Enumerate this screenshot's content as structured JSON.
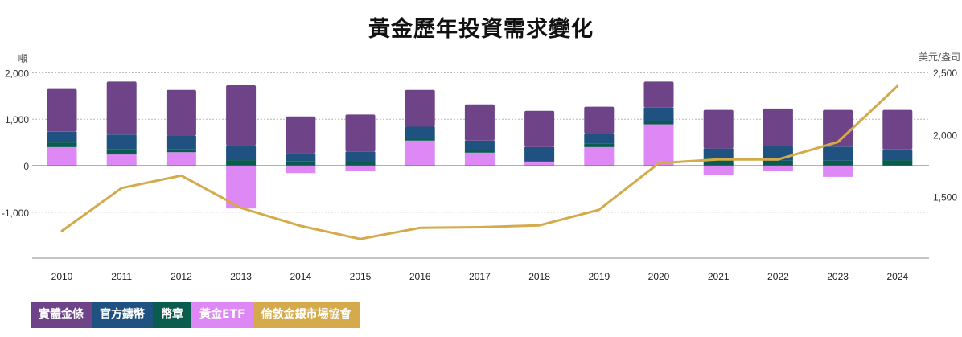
{
  "chart_data": {
    "type": "bar",
    "title": "黃金歷年投資需求變化",
    "left_axis_unit": "噸",
    "right_axis_unit": "美元/盎司",
    "categories": [
      "2010",
      "2011",
      "2012",
      "2013",
      "2014",
      "2015",
      "2016",
      "2017",
      "2018",
      "2019",
      "2020",
      "2021",
      "2022",
      "2023",
      "2024"
    ],
    "ylim_left": [
      -2000,
      2000
    ],
    "ylim_right": [
      1000,
      2500
    ],
    "left_ticks": [
      {
        "value": 2000,
        "label": "2,000"
      },
      {
        "value": 1000,
        "label": "1,000"
      },
      {
        "value": 0,
        "label": "0"
      },
      {
        "value": -1000,
        "label": "-1,000"
      }
    ],
    "right_ticks": [
      {
        "value": 2500,
        "label": "2,500"
      },
      {
        "value": 2000,
        "label": "2,000"
      },
      {
        "value": 1500,
        "label": "1,500"
      }
    ],
    "grid": true,
    "stack_order": [
      "黃金ETF",
      "幣章",
      "官方鑄幣",
      "實體金條"
    ],
    "series": [
      {
        "name": "實體金條",
        "type": "bar",
        "color": "#6e4388",
        "values": [
          920,
          1140,
          990,
          1290,
          790,
          800,
          790,
          780,
          780,
          580,
          560,
          830,
          810,
          790,
          850
        ]
      },
      {
        "name": "官方鑄幣",
        "type": "bar",
        "color": "#1f5280",
        "values": [
          230,
          320,
          290,
          320,
          180,
          220,
          260,
          220,
          300,
          210,
          290,
          210,
          310,
          300,
          230
        ]
      },
      {
        "name": "幣章",
        "type": "bar",
        "color": "#0a5c4f",
        "values": [
          100,
          110,
          60,
          120,
          90,
          80,
          40,
          40,
          30,
          80,
          70,
          160,
          110,
          110,
          120
        ]
      },
      {
        "name": "黃金ETF",
        "type": "bar",
        "color": "#dd88f5",
        "values": [
          400,
          240,
          290,
          -920,
          -160,
          -120,
          540,
          280,
          70,
          400,
          890,
          -200,
          -110,
          -240,
          0
        ]
      },
      {
        "name": "倫敦金銀市場協會",
        "type": "line",
        "axis": "right",
        "color": "#d4aa4a",
        "values": [
          1225,
          1570,
          1670,
          1410,
          1265,
          1160,
          1250,
          1255,
          1270,
          1395,
          1770,
          1800,
          1800,
          1940,
          2390
        ]
      }
    ],
    "legend_position": "bottom-left"
  },
  "legend": [
    {
      "label": "實體金條",
      "color": "#6e4388"
    },
    {
      "label": "官方鑄幣",
      "color": "#1f5280"
    },
    {
      "label": "幣章",
      "color": "#0a5c4f"
    },
    {
      "label": "黃金ETF",
      "color": "#dd88f5"
    },
    {
      "label": "倫敦金銀市場協會",
      "color": "#d4aa4a"
    }
  ]
}
